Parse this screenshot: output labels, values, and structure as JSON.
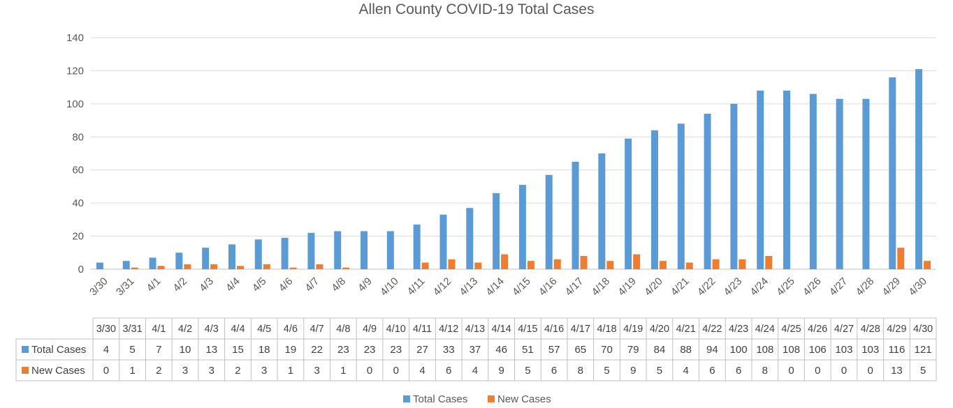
{
  "chart_data": {
    "type": "bar",
    "title": "Allen County COVID-19 Total Cases",
    "xlabel": "",
    "ylabel": "",
    "ylim": [
      0,
      140
    ],
    "yticks": [
      0,
      20,
      40,
      60,
      80,
      100,
      120,
      140
    ],
    "grid": true,
    "legend_position": "bottom",
    "data_table": true,
    "categories": [
      "3/30",
      "3/31",
      "4/1",
      "4/2",
      "4/3",
      "4/4",
      "4/5",
      "4/6",
      "4/7",
      "4/8",
      "4/9",
      "4/10",
      "4/11",
      "4/12",
      "4/13",
      "4/14",
      "4/15",
      "4/16",
      "4/17",
      "4/18",
      "4/19",
      "4/20",
      "4/21",
      "4/22",
      "4/23",
      "4/24",
      "4/25",
      "4/26",
      "4/27",
      "4/28",
      "4/29",
      "4/30"
    ],
    "series": [
      {
        "name": "Total Cases",
        "color": "#5B9BD5",
        "values": [
          4,
          5,
          7,
          10,
          13,
          15,
          18,
          19,
          22,
          23,
          23,
          23,
          27,
          33,
          37,
          46,
          51,
          57,
          65,
          70,
          79,
          84,
          88,
          94,
          100,
          108,
          108,
          106,
          103,
          103,
          116,
          121
        ]
      },
      {
        "name": "New Cases",
        "color": "#ED7D31",
        "values": [
          0,
          1,
          2,
          3,
          3,
          2,
          3,
          1,
          3,
          1,
          0,
          0,
          4,
          6,
          4,
          9,
          5,
          6,
          8,
          5,
          9,
          5,
          4,
          6,
          6,
          8,
          0,
          0,
          0,
          0,
          13,
          5
        ]
      }
    ]
  }
}
